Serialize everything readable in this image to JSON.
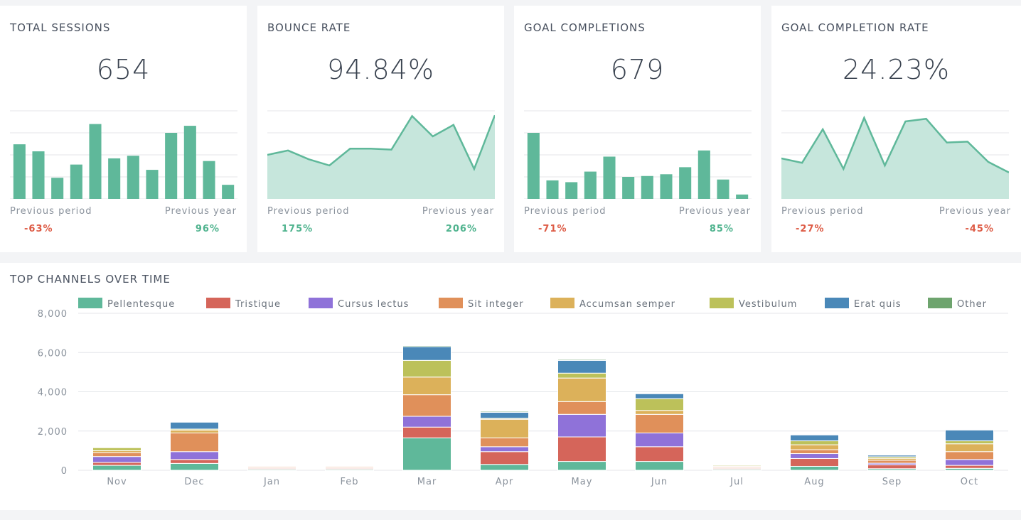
{
  "colors": {
    "bar": "#5fb89a",
    "area_line": "#5fb89a",
    "area_fill": "#c6e6dc",
    "grid": "#e4e6ea",
    "negative": "#dd5a44",
    "positive": "#4fb38e"
  },
  "cards": [
    {
      "title": "TOTAL SESSIONS",
      "value": "654",
      "prev_label": "Previous period",
      "year_label": "Previous year",
      "prev_pct": "-63%",
      "year_pct": "96%",
      "prev_trend": "negative",
      "year_trend": "positive",
      "spark_type": "bar",
      "spark_values": [
        0.62,
        0.54,
        0.24,
        0.39,
        0.85,
        0.46,
        0.49,
        0.33,
        0.75,
        0.83,
        0.43,
        0.16
      ]
    },
    {
      "title": "BOUNCE RATE",
      "value": "94.84%",
      "prev_label": "Previous period",
      "year_label": "Previous year",
      "prev_pct": "175%",
      "year_pct": "206%",
      "prev_trend": "positive",
      "year_trend": "positive",
      "spark_type": "area",
      "spark_values": [
        0.5,
        0.55,
        0.45,
        0.38,
        0.57,
        0.57,
        0.56,
        0.94,
        0.71,
        0.84,
        0.34,
        0.95
      ]
    },
    {
      "title": "GOAL COMPLETIONS",
      "value": "679",
      "prev_label": "Previous period",
      "year_label": "Previous year",
      "prev_pct": "-71%",
      "year_pct": "85%",
      "prev_trend": "negative",
      "year_trend": "positive",
      "spark_type": "bar",
      "spark_values": [
        0.75,
        0.21,
        0.19,
        0.31,
        0.48,
        0.25,
        0.26,
        0.28,
        0.36,
        0.55,
        0.22,
        0.05
      ]
    },
    {
      "title": "GOAL COMPLETION RATE",
      "value": "24.23%",
      "prev_label": "Previous period",
      "year_label": "Previous year",
      "prev_pct": "-27%",
      "year_pct": "-45%",
      "prev_trend": "negative",
      "year_trend": "negative",
      "spark_type": "area",
      "spark_values": [
        0.46,
        0.41,
        0.79,
        0.34,
        0.92,
        0.38,
        0.88,
        0.91,
        0.64,
        0.65,
        0.42,
        0.3
      ]
    }
  ],
  "channels": {
    "title": "TOP CHANNELS OVER TIME",
    "chart_data": {
      "type": "bar",
      "stacked": true,
      "categories": [
        "Nov",
        "Dec",
        "Jan",
        "Feb",
        "Mar",
        "Apr",
        "May",
        "Jun",
        "Jul",
        "Aug",
        "Sep",
        "Oct"
      ],
      "ylim": [
        0,
        8000
      ],
      "yticks": [
        0,
        2000,
        4000,
        6000,
        8000
      ],
      "ytick_labels": [
        "0",
        "2,000",
        "4,000",
        "6,000",
        "8,000"
      ],
      "grid": true,
      "legend_position": "top",
      "series": [
        {
          "name": "Pellentesque",
          "color": "#5fb89a",
          "values": [
            250,
            350,
            50,
            50,
            1650,
            300,
            450,
            450,
            50,
            200,
            80,
            100
          ]
        },
        {
          "name": "Tristique",
          "color": "#d5655a",
          "values": [
            150,
            200,
            50,
            50,
            550,
            650,
            1250,
            750,
            50,
            400,
            200,
            150
          ]
        },
        {
          "name": "Cursus lectus",
          "color": "#8f72d9",
          "values": [
            300,
            400,
            30,
            30,
            550,
            250,
            1150,
            700,
            30,
            250,
            80,
            300
          ]
        },
        {
          "name": "Sit integer",
          "color": "#e0905a",
          "values": [
            200,
            950,
            50,
            50,
            1100,
            450,
            650,
            950,
            50,
            200,
            150,
            400
          ]
        },
        {
          "name": "Accumsan semper",
          "color": "#dcb15a",
          "values": [
            100,
            150,
            30,
            30,
            900,
            950,
            1200,
            200,
            30,
            250,
            100,
            400
          ]
        },
        {
          "name": "Vestibulum",
          "color": "#bcc15a",
          "values": [
            150,
            50,
            30,
            30,
            850,
            50,
            250,
            600,
            50,
            200,
            80,
            150
          ]
        },
        {
          "name": "Erat quis",
          "color": "#4a88b8",
          "values": [
            0,
            350,
            30,
            30,
            700,
            300,
            650,
            250,
            20,
            300,
            80,
            550
          ]
        },
        {
          "name": "Other",
          "color": "#6ea46e",
          "values": [
            0,
            0,
            0,
            0,
            50,
            50,
            50,
            0,
            0,
            0,
            0,
            0
          ]
        }
      ]
    }
  }
}
